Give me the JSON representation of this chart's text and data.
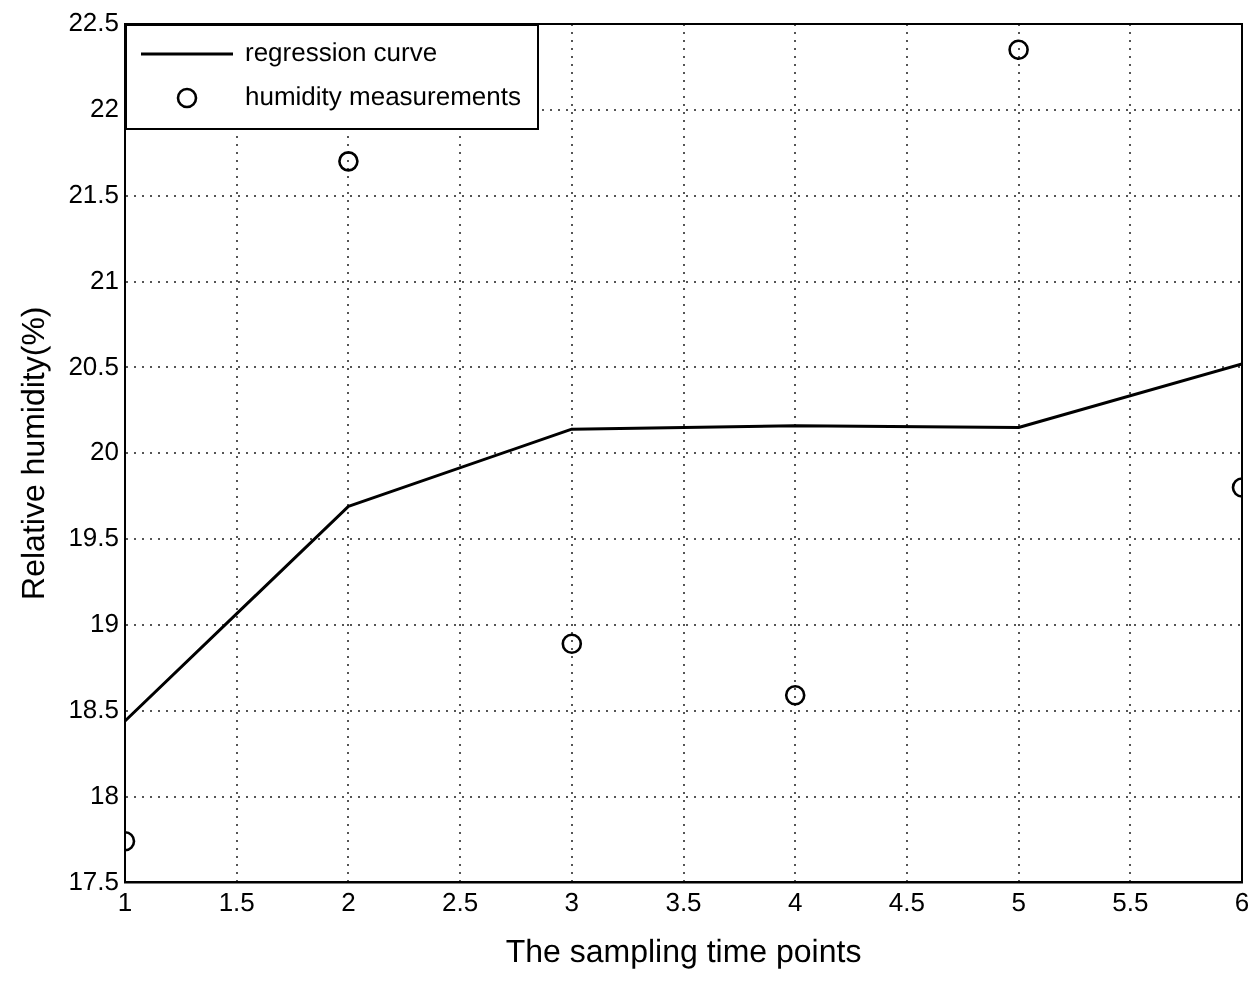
{
  "chart_data": {
    "type": "line",
    "xlabel": "The sampling time points",
    "ylabel": "Relative humidity(%)",
    "x": [
      1,
      2,
      3,
      4,
      5,
      6
    ],
    "series": [
      {
        "name": "regression curve",
        "color": "#000000",
        "marker": "none",
        "values": [
          18.44,
          19.69,
          20.14,
          20.16,
          20.15,
          20.52
        ]
      },
      {
        "name": "humidity measurements",
        "type": "scatter",
        "color": "#000000",
        "marker": "circle",
        "values": [
          17.74,
          21.7,
          18.89,
          18.59,
          22.35,
          19.8
        ]
      }
    ],
    "xlim": [
      1,
      6
    ],
    "xticks": [
      1,
      1.5,
      2,
      2.5,
      3,
      3.5,
      4,
      4.5,
      5,
      5.5,
      6
    ],
    "ylim": [
      17.5,
      22.5
    ],
    "yticks": [
      17.5,
      18,
      18.5,
      19,
      19.5,
      20,
      20.5,
      21,
      21.5,
      22,
      22.5
    ],
    "grid": true,
    "legend": "top left"
  }
}
